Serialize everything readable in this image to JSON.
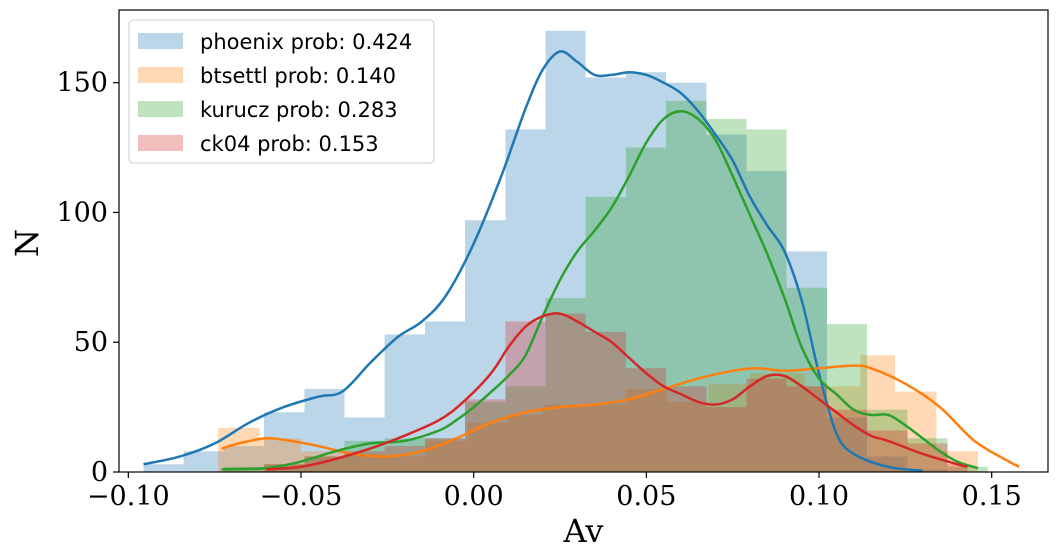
{
  "chart_data": {
    "type": "histogram",
    "xlabel": "Av",
    "ylabel": "N",
    "xlim": [
      -0.1027,
      0.1663
    ],
    "ylim": [
      0,
      178
    ],
    "xticks": [
      -0.1,
      -0.05,
      0.0,
      0.05,
      0.1,
      0.15
    ],
    "xtick_labels": [
      "−0.10",
      "−0.05",
      "0.00",
      "0.05",
      "0.10",
      "0.15"
    ],
    "yticks": [
      0,
      50,
      100,
      150
    ],
    "ytick_labels": [
      "0",
      "50",
      "100",
      "150"
    ],
    "grid": false,
    "legend_position": "top-left",
    "series": [
      {
        "name": "phoenix prob: 0.424",
        "color": "#1f77b4",
        "bins": [
          {
            "x0": -0.0956,
            "x1": -0.084,
            "y": 3
          },
          {
            "x0": -0.084,
            "x1": -0.0723,
            "y": 8
          },
          {
            "x0": -0.0723,
            "x1": -0.0607,
            "y": 10
          },
          {
            "x0": -0.0607,
            "x1": -0.049,
            "y": 23
          },
          {
            "x0": -0.049,
            "x1": -0.0374,
            "y": 32
          },
          {
            "x0": -0.0374,
            "x1": -0.0258,
            "y": 21
          },
          {
            "x0": -0.0258,
            "x1": -0.0141,
            "y": 53
          },
          {
            "x0": -0.0141,
            "x1": -0.0025,
            "y": 58
          },
          {
            "x0": -0.0025,
            "x1": 0.0092,
            "y": 97
          },
          {
            "x0": 0.0092,
            "x1": 0.0208,
            "y": 132
          },
          {
            "x0": 0.0208,
            "x1": 0.0324,
            "y": 170
          },
          {
            "x0": 0.0324,
            "x1": 0.0441,
            "y": 152
          },
          {
            "x0": 0.0441,
            "x1": 0.0557,
            "y": 154
          },
          {
            "x0": 0.0557,
            "x1": 0.0674,
            "y": 150
          },
          {
            "x0": 0.0674,
            "x1": 0.079,
            "y": 130
          },
          {
            "x0": 0.079,
            "x1": 0.0906,
            "y": 116
          },
          {
            "x0": 0.0906,
            "x1": 0.1023,
            "y": 85
          },
          {
            "x0": 0.1023,
            "x1": 0.1139,
            "y": 21
          },
          {
            "x0": 0.1139,
            "x1": 0.1256,
            "y": 6
          },
          {
            "x0": 0.1256,
            "x1": 0.1372,
            "y": 1
          }
        ],
        "kde": [
          [
            -0.0956,
            3
          ],
          [
            -0.085,
            6
          ],
          [
            -0.075,
            11
          ],
          [
            -0.065,
            19
          ],
          [
            -0.055,
            25
          ],
          [
            -0.045,
            29
          ],
          [
            -0.038,
            31
          ],
          [
            -0.03,
            42
          ],
          [
            -0.022,
            52
          ],
          [
            -0.015,
            58
          ],
          [
            -0.008,
            68
          ],
          [
            0.0,
            88
          ],
          [
            0.008,
            114
          ],
          [
            0.015,
            140
          ],
          [
            0.02,
            155
          ],
          [
            0.025,
            162
          ],
          [
            0.03,
            158
          ],
          [
            0.035,
            153
          ],
          [
            0.04,
            153
          ],
          [
            0.045,
            154
          ],
          [
            0.05,
            153
          ],
          [
            0.055,
            150
          ],
          [
            0.06,
            146
          ],
          [
            0.065,
            139
          ],
          [
            0.07,
            130
          ],
          [
            0.075,
            120
          ],
          [
            0.08,
            106
          ],
          [
            0.085,
            95
          ],
          [
            0.09,
            85
          ],
          [
            0.095,
            66
          ],
          [
            0.1,
            38
          ],
          [
            0.105,
            15
          ],
          [
            0.11,
            7
          ],
          [
            0.12,
            2
          ],
          [
            0.13,
            0.5
          ]
        ]
      },
      {
        "name": "btsettl prob: 0.140",
        "color": "#ff7f0e",
        "bins": [
          {
            "x0": -0.074,
            "x1": -0.062,
            "y": 17
          },
          {
            "x0": -0.062,
            "x1": -0.05,
            "y": 13
          },
          {
            "x0": -0.05,
            "x1": -0.038,
            "y": 8
          },
          {
            "x0": -0.038,
            "x1": -0.026,
            "y": 7
          },
          {
            "x0": -0.026,
            "x1": -0.014,
            "y": 6
          },
          {
            "x0": -0.014,
            "x1": -0.002,
            "y": 12
          },
          {
            "x0": -0.002,
            "x1": 0.01,
            "y": 19
          },
          {
            "x0": 0.01,
            "x1": 0.02,
            "y": 22
          },
          {
            "x0": 0.02,
            "x1": 0.032,
            "y": 26
          },
          {
            "x0": 0.032,
            "x1": 0.044,
            "y": 26
          },
          {
            "x0": 0.044,
            "x1": 0.056,
            "y": 32
          },
          {
            "x0": 0.056,
            "x1": 0.068,
            "y": 27
          },
          {
            "x0": 0.068,
            "x1": 0.08,
            "y": 34
          },
          {
            "x0": 0.08,
            "x1": 0.096,
            "y": 38
          },
          {
            "x0": 0.096,
            "x1": 0.112,
            "y": 33
          },
          {
            "x0": 0.112,
            "x1": 0.122,
            "y": 45
          },
          {
            "x0": 0.122,
            "x1": 0.134,
            "y": 31
          },
          {
            "x0": 0.134,
            "x1": 0.146,
            "y": 8
          }
        ],
        "kde": [
          [
            -0.073,
            9
          ],
          [
            -0.068,
            11
          ],
          [
            -0.06,
            13
          ],
          [
            -0.053,
            12
          ],
          [
            -0.045,
            10
          ],
          [
            -0.035,
            7
          ],
          [
            -0.025,
            6
          ],
          [
            -0.015,
            8
          ],
          [
            -0.005,
            13
          ],
          [
            0.005,
            19
          ],
          [
            0.015,
            23
          ],
          [
            0.025,
            25
          ],
          [
            0.035,
            26
          ],
          [
            0.045,
            28
          ],
          [
            0.055,
            32
          ],
          [
            0.065,
            36
          ],
          [
            0.075,
            39
          ],
          [
            0.082,
            40
          ],
          [
            0.09,
            39
          ],
          [
            0.1,
            40
          ],
          [
            0.11,
            41
          ],
          [
            0.115,
            40
          ],
          [
            0.125,
            34
          ],
          [
            0.135,
            25
          ],
          [
            0.145,
            12
          ],
          [
            0.155,
            4
          ],
          [
            0.158,
            2
          ]
        ]
      },
      {
        "name": "kurucz prob: 0.283",
        "color": "#2ca02c",
        "bins": [
          {
            "x0": -0.0723,
            "x1": -0.0607,
            "y": 2
          },
          {
            "x0": -0.0607,
            "x1": -0.049,
            "y": 3
          },
          {
            "x0": -0.049,
            "x1": -0.0374,
            "y": 6
          },
          {
            "x0": -0.0374,
            "x1": -0.0258,
            "y": 12
          },
          {
            "x0": -0.0258,
            "x1": -0.0141,
            "y": 13
          },
          {
            "x0": -0.0141,
            "x1": -0.0025,
            "y": 13
          },
          {
            "x0": -0.0025,
            "x1": 0.0092,
            "y": 27
          },
          {
            "x0": 0.0092,
            "x1": 0.0208,
            "y": 33
          },
          {
            "x0": 0.0208,
            "x1": 0.0324,
            "y": 67
          },
          {
            "x0": 0.0324,
            "x1": 0.0441,
            "y": 106
          },
          {
            "x0": 0.0441,
            "x1": 0.0557,
            "y": 125
          },
          {
            "x0": 0.0557,
            "x1": 0.0674,
            "y": 143
          },
          {
            "x0": 0.0674,
            "x1": 0.079,
            "y": 136
          },
          {
            "x0": 0.079,
            "x1": 0.0906,
            "y": 132
          },
          {
            "x0": 0.0906,
            "x1": 0.1023,
            "y": 71
          },
          {
            "x0": 0.1023,
            "x1": 0.1139,
            "y": 57
          },
          {
            "x0": 0.1139,
            "x1": 0.1256,
            "y": 24
          },
          {
            "x0": 0.1256,
            "x1": 0.1372,
            "y": 13
          },
          {
            "x0": 0.1372,
            "x1": 0.1488,
            "y": 2
          }
        ],
        "kde": [
          [
            -0.073,
            1
          ],
          [
            -0.06,
            1.5
          ],
          [
            -0.05,
            4
          ],
          [
            -0.04,
            8
          ],
          [
            -0.03,
            11
          ],
          [
            -0.02,
            12
          ],
          [
            -0.01,
            16
          ],
          [
            -0.005,
            20
          ],
          [
            0.0,
            25
          ],
          [
            0.01,
            37
          ],
          [
            0.015,
            45
          ],
          [
            0.02,
            60
          ],
          [
            0.025,
            74
          ],
          [
            0.03,
            85
          ],
          [
            0.035,
            93
          ],
          [
            0.04,
            102
          ],
          [
            0.045,
            114
          ],
          [
            0.05,
            127
          ],
          [
            0.055,
            136
          ],
          [
            0.06,
            139
          ],
          [
            0.065,
            136
          ],
          [
            0.07,
            128
          ],
          [
            0.075,
            114
          ],
          [
            0.08,
            99
          ],
          [
            0.085,
            84
          ],
          [
            0.09,
            67
          ],
          [
            0.095,
            48
          ],
          [
            0.1,
            36
          ],
          [
            0.105,
            30
          ],
          [
            0.11,
            24
          ],
          [
            0.115,
            22
          ],
          [
            0.12,
            22
          ],
          [
            0.125,
            18
          ],
          [
            0.13,
            13
          ],
          [
            0.135,
            8
          ],
          [
            0.14,
            4
          ],
          [
            0.146,
            1.5
          ]
        ]
      },
      {
        "name": "ck04 prob: 0.153",
        "color": "#d62728",
        "bins": [
          {
            "x0": -0.0607,
            "x1": -0.049,
            "y": 3
          },
          {
            "x0": -0.049,
            "x1": -0.0374,
            "y": 6
          },
          {
            "x0": -0.0374,
            "x1": -0.0258,
            "y": 8
          },
          {
            "x0": -0.0258,
            "x1": -0.0141,
            "y": 10
          },
          {
            "x0": -0.0141,
            "x1": -0.0025,
            "y": 13
          },
          {
            "x0": -0.0025,
            "x1": 0.0092,
            "y": 28
          },
          {
            "x0": 0.0092,
            "x1": 0.0208,
            "y": 58
          },
          {
            "x0": 0.0208,
            "x1": 0.0324,
            "y": 61
          },
          {
            "x0": 0.0324,
            "x1": 0.0441,
            "y": 54
          },
          {
            "x0": 0.0441,
            "x1": 0.0557,
            "y": 40
          },
          {
            "x0": 0.0557,
            "x1": 0.0674,
            "y": 33
          },
          {
            "x0": 0.0674,
            "x1": 0.079,
            "y": 25
          },
          {
            "x0": 0.079,
            "x1": 0.0906,
            "y": 36
          },
          {
            "x0": 0.0906,
            "x1": 0.1023,
            "y": 33
          },
          {
            "x0": 0.1023,
            "x1": 0.1139,
            "y": 24
          },
          {
            "x0": 0.1139,
            "x1": 0.1256,
            "y": 16
          },
          {
            "x0": 0.1256,
            "x1": 0.1372,
            "y": 11
          },
          {
            "x0": 0.1372,
            "x1": 0.143,
            "y": 3
          }
        ],
        "kde": [
          [
            -0.06,
            1
          ],
          [
            -0.05,
            2
          ],
          [
            -0.04,
            5
          ],
          [
            -0.03,
            9
          ],
          [
            -0.02,
            14
          ],
          [
            -0.01,
            20
          ],
          [
            -0.003,
            27
          ],
          [
            0.005,
            38
          ],
          [
            0.01,
            48
          ],
          [
            0.015,
            56
          ],
          [
            0.02,
            60
          ],
          [
            0.025,
            61
          ],
          [
            0.03,
            58
          ],
          [
            0.035,
            54
          ],
          [
            0.04,
            50
          ],
          [
            0.045,
            44
          ],
          [
            0.05,
            38
          ],
          [
            0.055,
            33
          ],
          [
            0.06,
            30
          ],
          [
            0.065,
            27
          ],
          [
            0.07,
            26
          ],
          [
            0.075,
            28
          ],
          [
            0.08,
            33
          ],
          [
            0.085,
            37
          ],
          [
            0.09,
            37
          ],
          [
            0.095,
            33
          ],
          [
            0.1,
            28
          ],
          [
            0.105,
            23
          ],
          [
            0.11,
            18
          ],
          [
            0.115,
            14
          ],
          [
            0.12,
            12
          ],
          [
            0.13,
            7
          ],
          [
            0.14,
            3
          ],
          [
            0.143,
            2
          ]
        ]
      }
    ]
  }
}
